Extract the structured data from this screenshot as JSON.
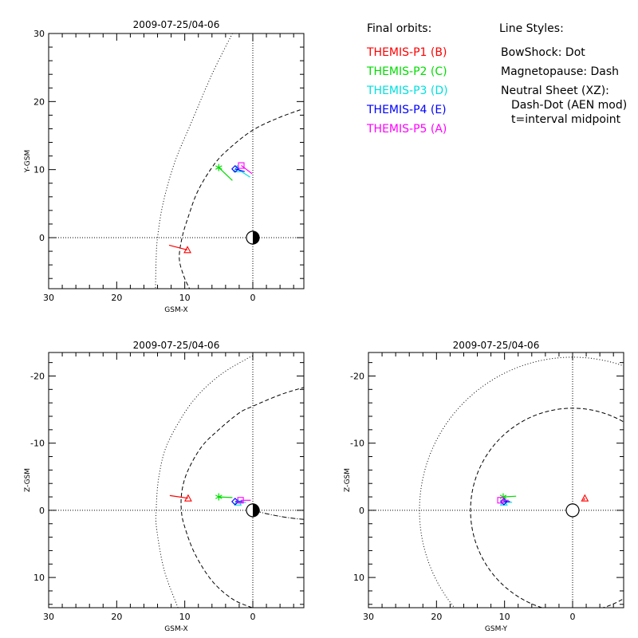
{
  "colors": {
    "P1": "#ff0000",
    "P2": "#00dd00",
    "P3": "#00e0e0",
    "P4": "#0000ff",
    "P5": "#ff00ff"
  },
  "legend": {
    "orbits_title": "Final orbits:",
    "orbits": [
      {
        "label": "THEMIS-P1 (B)",
        "probe": "P1"
      },
      {
        "label": "THEMIS-P2 (C)",
        "probe": "P2"
      },
      {
        "label": "THEMIS-P3 (D)",
        "probe": "P3"
      },
      {
        "label": "THEMIS-P4 (E)",
        "probe": "P4"
      },
      {
        "label": "THEMIS-P5 (A)",
        "probe": "P5"
      }
    ],
    "styles_title": "Line Styles:",
    "styles": [
      "BowShock: Dot",
      "Magnetopause: Dash",
      "Neutral Sheet (XZ):",
      "Dash-Dot (AEN mod)",
      "t=interval midpoint"
    ]
  },
  "chart_data": [
    {
      "id": "xy",
      "type": "scatter",
      "title": "2009-07-25/04-06",
      "xlabel": "GSM-X",
      "ylabel": "Y-GSM",
      "xlim": [
        30,
        -7.5
      ],
      "ylim": [
        30,
        -7.5
      ],
      "xticks": [
        30,
        20,
        10,
        0
      ],
      "yticks": [
        0,
        10,
        20,
        30
      ],
      "earth_shading": "day-night",
      "bowshock": [
        [
          3,
          30
        ],
        [
          6,
          24
        ],
        [
          9,
          17
        ],
        [
          11.5,
          11
        ],
        [
          13.2,
          5
        ],
        [
          14,
          0
        ],
        [
          14.2,
          -3
        ],
        [
          14.3,
          -7.5
        ]
      ],
      "magnetopause": [
        [
          -7,
          18.8
        ],
        [
          -3.5,
          17.5
        ],
        [
          0,
          15.8
        ],
        [
          3,
          13.5
        ],
        [
          5.5,
          11
        ],
        [
          8,
          7
        ],
        [
          9.5,
          3
        ],
        [
          10.4,
          0
        ],
        [
          10.8,
          -3
        ],
        [
          10.2,
          -5.5
        ],
        [
          9.3,
          -7.5
        ]
      ],
      "series": [
        {
          "name": "THEMIS-P1 (B)",
          "probe": "P1",
          "marker": "triangle",
          "pos": [
            9.6,
            -1.8
          ],
          "track": [
            [
              12.3,
              -1.1
            ],
            [
              9.6,
              -1.8
            ]
          ]
        },
        {
          "name": "THEMIS-P2 (C)",
          "probe": "P2",
          "marker": "asterisk",
          "pos": [
            5.0,
            10.3
          ],
          "track": [
            [
              5.0,
              10.3
            ],
            [
              3.0,
              8.4
            ]
          ]
        },
        {
          "name": "THEMIS-P3 (D)",
          "probe": "P3",
          "marker": "triangle",
          "pos": [
            2.3,
            10.1
          ],
          "track": [
            [
              2.3,
              10.1
            ],
            [
              0.4,
              8.9
            ]
          ]
        },
        {
          "name": "THEMIS-P4 (E)",
          "probe": "P4",
          "marker": "diamond",
          "pos": [
            2.6,
            10.1
          ],
          "track": [
            [
              2.6,
              10.1
            ],
            [
              1.2,
              9.7
            ]
          ]
        },
        {
          "name": "THEMIS-P5 (A)",
          "probe": "P5",
          "marker": "square",
          "pos": [
            1.7,
            10.6
          ],
          "track": [
            [
              1.7,
              10.6
            ],
            [
              0.1,
              9.4
            ]
          ]
        }
      ]
    },
    {
      "id": "xz",
      "type": "scatter",
      "title": "2009-07-25/04-06",
      "xlabel": "GSM-X",
      "ylabel": "Z-GSM",
      "xlim": [
        30,
        -7.5
      ],
      "ylim": [
        -23.5,
        14.5
      ],
      "xticks": [
        30,
        20,
        10,
        0
      ],
      "yticks": [
        10,
        0,
        -10,
        -20
      ],
      "earth_shading": "day-night",
      "bowshock": [
        [
          11,
          14.5
        ],
        [
          13,
          9
        ],
        [
          14.1,
          3
        ],
        [
          14.2,
          0
        ],
        [
          13.8,
          -5
        ],
        [
          12.5,
          -10
        ],
        [
          9,
          -16
        ],
        [
          5,
          -20
        ],
        [
          1,
          -22.5
        ],
        [
          0,
          -23
        ]
      ],
      "magnetopause": [
        [
          0.1,
          14.5
        ],
        [
          3,
          13.2
        ],
        [
          6,
          10.5
        ],
        [
          8.5,
          6.5
        ],
        [
          10,
          2.5
        ],
        [
          10.5,
          0
        ],
        [
          10.4,
          -3
        ],
        [
          9.5,
          -6
        ],
        [
          7.5,
          -9.5
        ],
        [
          5,
          -12
        ],
        [
          2,
          -14.5
        ],
        [
          0,
          -15.5
        ],
        [
          -4,
          -17.2
        ],
        [
          -7.5,
          -18.3
        ]
      ],
      "neutral_sheet": [
        [
          -0.5,
          0.1
        ],
        [
          -2,
          0.5
        ],
        [
          -4,
          0.9
        ],
        [
          -6,
          1.2
        ],
        [
          -7.5,
          1.35
        ]
      ],
      "series": [
        {
          "name": "THEMIS-P1 (B)",
          "probe": "P1",
          "marker": "triangle",
          "pos": [
            9.5,
            -1.8
          ],
          "track": [
            [
              12.2,
              -2.2
            ],
            [
              9.5,
              -1.8
            ]
          ]
        },
        {
          "name": "THEMIS-P2 (C)",
          "probe": "P2",
          "marker": "asterisk",
          "pos": [
            5.0,
            -2.0
          ],
          "track": [
            [
              5.0,
              -2.0
            ],
            [
              3.0,
              -1.9
            ]
          ]
        },
        {
          "name": "THEMIS-P3 (D)",
          "probe": "P3",
          "marker": "triangle",
          "pos": [
            2.2,
            -1.2
          ],
          "track": [
            [
              2.2,
              -1.2
            ],
            [
              1.0,
              -1.2
            ]
          ]
        },
        {
          "name": "THEMIS-P4 (E)",
          "probe": "P4",
          "marker": "diamond",
          "pos": [
            2.6,
            -1.3
          ],
          "track": [
            [
              2.6,
              -1.3
            ],
            [
              1.5,
              -1.3
            ]
          ]
        },
        {
          "name": "THEMIS-P5 (A)",
          "probe": "P5",
          "marker": "square",
          "pos": [
            1.8,
            -1.5
          ],
          "track": [
            [
              1.8,
              -1.5
            ],
            [
              0.3,
              -1.5
            ]
          ]
        }
      ]
    },
    {
      "id": "yz",
      "type": "scatter",
      "title": "2009-07-25/04-06",
      "xlabel": "GSM-Y",
      "ylabel": "Z-GSM",
      "xlim": [
        30,
        -7.5
      ],
      "ylim": [
        -23.5,
        14.5
      ],
      "xticks": [
        30,
        20,
        10,
        0
      ],
      "yticks": [
        10,
        0,
        -10,
        -20
      ],
      "earth_shading": "none",
      "bowshock_circle_radius": 22.5,
      "magnetopause_circle_radius": 15,
      "series": [
        {
          "name": "THEMIS-P1 (B)",
          "probe": "P1",
          "marker": "triangle",
          "pos": [
            -1.8,
            -1.8
          ],
          "track": [
            [
              -1.8,
              -1.8
            ],
            [
              -1.6,
              -1.5
            ]
          ]
        },
        {
          "name": "THEMIS-P2 (C)",
          "probe": "P2",
          "marker": "asterisk",
          "pos": [
            10.2,
            -2.0
          ],
          "track": [
            [
              10.2,
              -2.0
            ],
            [
              8.3,
              -2.1
            ]
          ]
        },
        {
          "name": "THEMIS-P3 (D)",
          "probe": "P3",
          "marker": "triangle",
          "pos": [
            10.1,
            -1.2
          ],
          "track": [
            [
              10.1,
              -1.2
            ],
            [
              8.9,
              -1.2
            ]
          ]
        },
        {
          "name": "THEMIS-P4 (E)",
          "probe": "P4",
          "marker": "diamond",
          "pos": [
            10.1,
            -1.3
          ],
          "track": [
            [
              10.1,
              -1.3
            ],
            [
              9.2,
              -1.3
            ]
          ]
        },
        {
          "name": "THEMIS-P5 (A)",
          "probe": "P5",
          "marker": "square",
          "pos": [
            10.6,
            -1.5
          ],
          "track": [
            [
              10.6,
              -1.5
            ],
            [
              9.4,
              -1.5
            ]
          ]
        }
      ]
    }
  ]
}
